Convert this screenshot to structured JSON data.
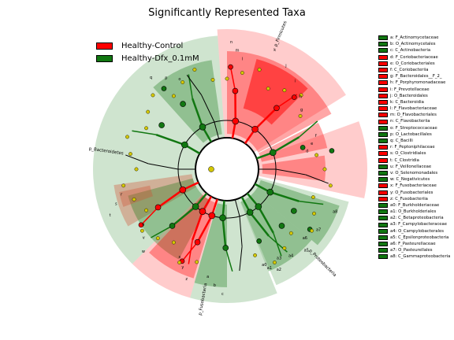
{
  "title": "Significantly Represented Taxa",
  "colors": {
    "control": "#ff0000",
    "dfx": "#117711",
    "yellow": "#d4c800"
  },
  "legend": [
    {
      "label": "Healthy-Control",
      "group": "control"
    },
    {
      "label": "Healthy-Dfx_0.1mM",
      "group": "dfx"
    }
  ],
  "taxa": [
    {
      "key": "a",
      "text": "a: F_Actinomycetaceae",
      "group": "dfx"
    },
    {
      "key": "b",
      "text": "b: O_Actinomycetales",
      "group": "dfx"
    },
    {
      "key": "c",
      "text": "c: C_Actinobacteria",
      "group": "dfx"
    },
    {
      "key": "d",
      "text": "d: F_Coriobacteriaceae",
      "group": "control"
    },
    {
      "key": "e",
      "text": "e: O_Coriobacteriales",
      "group": "control"
    },
    {
      "key": "f",
      "text": "f: C_Coriobacteriia",
      "group": "control"
    },
    {
      "key": "g",
      "text": "g: F_Bacteroidales__F_2_",
      "group": "control"
    },
    {
      "key": "h",
      "text": "h: F_Porphyromonadaceae",
      "group": "control"
    },
    {
      "key": "i",
      "text": "i: F_Prevotellaceae",
      "group": "control"
    },
    {
      "key": "j",
      "text": "j: O_Bacteroidales",
      "group": "control"
    },
    {
      "key": "k",
      "text": "k: C_Bacteroidia",
      "group": "control"
    },
    {
      "key": "l",
      "text": "l: F_Flavobacteriaceae",
      "group": "control"
    },
    {
      "key": "m",
      "text": "m: O_Flavobacteriales",
      "group": "control"
    },
    {
      "key": "n",
      "text": "n: C_Flavobacteriia",
      "group": "control"
    },
    {
      "key": "o",
      "text": "o: F_Streptococcaceae",
      "group": "dfx"
    },
    {
      "key": "p",
      "text": "p: O_Lactobacillales",
      "group": "dfx"
    },
    {
      "key": "q",
      "text": "q: C_Bacilli",
      "group": "dfx"
    },
    {
      "key": "r",
      "text": "r: F_Peptoniphilaceae",
      "group": "control"
    },
    {
      "key": "s",
      "text": "s: O_Clostridiales",
      "group": "control"
    },
    {
      "key": "t",
      "text": "t: C_Clostridia",
      "group": "control"
    },
    {
      "key": "u",
      "text": "u: F_Veillonellaceae",
      "group": "dfx"
    },
    {
      "key": "v",
      "text": "v: O_Selenomonadales",
      "group": "dfx"
    },
    {
      "key": "w",
      "text": "w: C_Negativicutes",
      "group": "dfx"
    },
    {
      "key": "x",
      "text": "x: F_Fusobacteriaceae",
      "group": "control"
    },
    {
      "key": "y",
      "text": "y: O_Fusobacteriales",
      "group": "control"
    },
    {
      "key": "z",
      "text": "z: C_Fusobacteriia",
      "group": "control"
    },
    {
      "key": "a0",
      "text": "a0: F_Burkholderiaceae",
      "group": "dfx"
    },
    {
      "key": "a1",
      "text": "a1: O_Burkholderiales",
      "group": "dfx"
    },
    {
      "key": "a2",
      "text": "a2: C_Betaproteobacteria",
      "group": "dfx"
    },
    {
      "key": "a3",
      "text": "a3: F_Campylobacteraceae",
      "group": "dfx"
    },
    {
      "key": "a4",
      "text": "a4: O_Campylobacterales",
      "group": "dfx"
    },
    {
      "key": "a5",
      "text": "a5: C_Epsilonproteobacteria",
      "group": "dfx"
    },
    {
      "key": "a6",
      "text": "a6: F_Pasteurellaceae",
      "group": "dfx"
    },
    {
      "key": "a7",
      "text": "a7: O_Pasteurellales",
      "group": "dfx"
    },
    {
      "key": "a8",
      "text": "a8: C_Gammaproteobacteria",
      "group": "dfx"
    }
  ],
  "phyla": [
    {
      "label": "p_Firmicutes",
      "group": "dfx"
    },
    {
      "label": "p_Bacteroidetes",
      "group": "control"
    },
    {
      "label": "p_Fusobacteria",
      "group": "control"
    },
    {
      "label": "p_Proteobacteria",
      "group": "dfx"
    }
  ]
}
